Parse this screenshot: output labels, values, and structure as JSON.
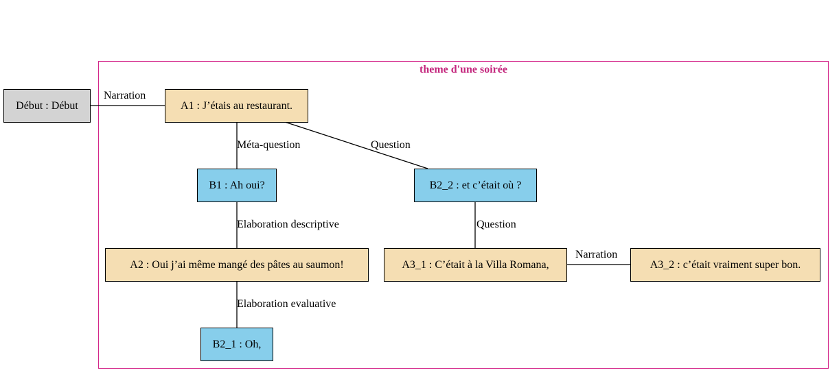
{
  "colors": {
    "start_fill": "#d3d3d3",
    "speaker_a_fill": "#f5deb3",
    "speaker_b_fill": "#87ceeb",
    "cluster_border": "#d4268a",
    "cluster_title": "#c4287e",
    "edge": "#000000"
  },
  "cluster": {
    "title": "theme d'une soirée"
  },
  "nodes": {
    "debut": "Début : Début",
    "a1": "A1 : J’étais au restaurant.",
    "b1": "B1 : Ah oui?",
    "b2_2": "B2_2 : et c’était où ?",
    "a2": "A2 : Oui j’ai même mangé des pâtes au saumon!",
    "a3_1": "A3_1 : C’était à la Villa Romana,",
    "a3_2": "A3_2 : c’était vraiment super bon.",
    "b2_1": "B2_1 : Oh,"
  },
  "edges": {
    "debut_a1": "Narration",
    "a1_b1": "Méta-question",
    "a1_b2_2": "Question",
    "b1_a2": "Elaboration descriptive",
    "b2_2_a3_1": "Question",
    "a3_1_a3_2": "Narration",
    "a2_b2_1": "Elaboration evaluative"
  }
}
